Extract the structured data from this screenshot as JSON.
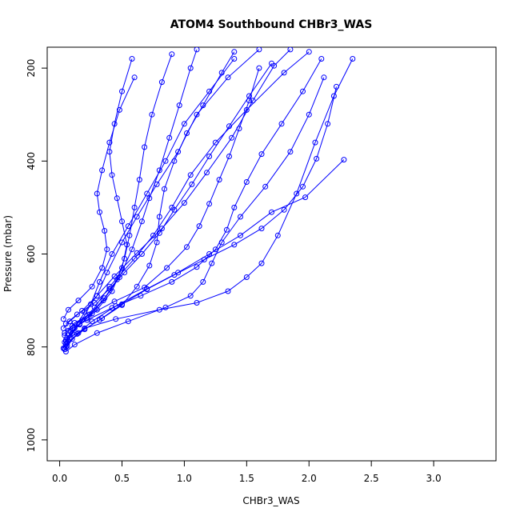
{
  "chart_data": {
    "type": "line",
    "title": "ATOM4 Southbound CHBr3_WAS",
    "xlabel": "CHBr3_WAS",
    "ylabel": "Pressure (mbar)",
    "xlim": [
      -0.1,
      3.5
    ],
    "ylim": [
      1045,
      155
    ],
    "y_reversed": true,
    "x_ticks": [
      0.0,
      0.5,
      1.0,
      1.5,
      2.0,
      2.5,
      3.0
    ],
    "x_tick_labels": [
      "0.0",
      "0.5",
      "1.0",
      "1.5",
      "2.0",
      "2.5",
      "3.0"
    ],
    "y_ticks": [
      200,
      400,
      600,
      800,
      1000
    ],
    "y_tick_labels": [
      "200",
      "400",
      "600",
      "800",
      "1000"
    ],
    "grid": false,
    "legend": "none",
    "marker": "open-circle",
    "series_color": "#0000ff",
    "series": [
      {
        "points": [
          [
            0.04,
            805
          ],
          [
            0.06,
            792
          ],
          [
            0.1,
            770
          ],
          [
            0.18,
            742
          ],
          [
            0.25,
            708
          ],
          [
            0.32,
            660
          ],
          [
            0.42,
            600
          ],
          [
            0.55,
            540
          ],
          [
            0.7,
            470
          ],
          [
            0.85,
            400
          ],
          [
            1.0,
            320
          ],
          [
            1.2,
            250
          ],
          [
            1.4,
            180
          ]
        ]
      },
      {
        "points": [
          [
            0.03,
            803
          ],
          [
            0.05,
            788
          ],
          [
            0.12,
            760
          ],
          [
            0.2,
            725
          ],
          [
            0.3,
            690
          ],
          [
            0.38,
            640
          ],
          [
            0.5,
            575
          ],
          [
            0.62,
            520
          ],
          [
            0.78,
            450
          ],
          [
            0.95,
            380
          ],
          [
            1.1,
            300
          ],
          [
            1.35,
            220
          ],
          [
            1.6,
            160
          ]
        ]
      },
      {
        "points": [
          [
            0.05,
            800
          ],
          [
            0.08,
            780
          ],
          [
            0.16,
            750
          ],
          [
            0.28,
            715
          ],
          [
            0.4,
            670
          ],
          [
            0.6,
            610
          ],
          [
            0.75,
            560
          ],
          [
            0.9,
            500
          ],
          [
            1.05,
            430
          ],
          [
            1.25,
            360
          ],
          [
            1.5,
            290
          ],
          [
            1.8,
            210
          ],
          [
            2.0,
            165
          ]
        ]
      },
      {
        "points": [
          [
            0.04,
            790
          ],
          [
            0.09,
            768
          ],
          [
            0.22,
            738
          ],
          [
            0.35,
            700
          ],
          [
            0.48,
            650
          ],
          [
            0.58,
            590
          ],
          [
            0.66,
            530
          ],
          [
            0.72,
            480
          ],
          [
            0.8,
            420
          ],
          [
            0.88,
            350
          ],
          [
            0.96,
            280
          ],
          [
            1.05,
            200
          ],
          [
            1.1,
            160
          ]
        ]
      },
      {
        "points": [
          [
            0.06,
            798
          ],
          [
            0.14,
            772
          ],
          [
            0.26,
            745
          ],
          [
            0.45,
            712
          ],
          [
            0.7,
            675
          ],
          [
            0.95,
            640
          ],
          [
            1.2,
            600
          ],
          [
            1.45,
            560
          ],
          [
            1.7,
            510
          ],
          [
            1.97,
            478
          ],
          [
            2.28,
            397
          ]
        ]
      },
      {
        "points": [
          [
            0.05,
            785
          ],
          [
            0.2,
            760
          ],
          [
            0.45,
            740
          ],
          [
            0.8,
            720
          ],
          [
            1.1,
            705
          ],
          [
            1.35,
            680
          ],
          [
            1.5,
            650
          ],
          [
            1.62,
            620
          ],
          [
            1.75,
            560
          ],
          [
            1.9,
            470
          ],
          [
            2.05,
            360
          ],
          [
            2.2,
            260
          ],
          [
            2.35,
            180
          ]
        ]
      },
      {
        "points": [
          [
            0.04,
            775
          ],
          [
            0.1,
            755
          ],
          [
            0.24,
            730
          ],
          [
            0.36,
            695
          ],
          [
            0.46,
            655
          ],
          [
            0.52,
            610
          ],
          [
            0.56,
            560
          ],
          [
            0.6,
            500
          ],
          [
            0.64,
            440
          ],
          [
            0.68,
            370
          ],
          [
            0.74,
            300
          ],
          [
            0.82,
            230
          ],
          [
            0.9,
            170
          ]
        ]
      },
      {
        "points": [
          [
            0.03,
            760
          ],
          [
            0.08,
            745
          ],
          [
            0.18,
            722
          ],
          [
            0.3,
            690
          ],
          [
            0.44,
            648
          ],
          [
            0.62,
            598
          ],
          [
            0.82,
            545
          ],
          [
            1.0,
            490
          ],
          [
            1.18,
            425
          ],
          [
            1.38,
            350
          ],
          [
            1.55,
            270
          ],
          [
            1.72,
            195
          ],
          [
            1.85,
            160
          ]
        ]
      },
      {
        "points": [
          [
            0.05,
            810
          ],
          [
            0.12,
            795
          ],
          [
            0.3,
            770
          ],
          [
            0.55,
            745
          ],
          [
            0.85,
            715
          ],
          [
            1.05,
            690
          ],
          [
            1.15,
            660
          ],
          [
            1.22,
            620
          ],
          [
            1.3,
            575
          ],
          [
            1.45,
            520
          ],
          [
            1.65,
            455
          ],
          [
            1.85,
            380
          ],
          [
            2.0,
            300
          ],
          [
            2.12,
            220
          ]
        ]
      },
      {
        "points": [
          [
            0.06,
            780
          ],
          [
            0.16,
            752
          ],
          [
            0.3,
            720
          ],
          [
            0.42,
            680
          ],
          [
            0.5,
            630
          ],
          [
            0.54,
            580
          ],
          [
            0.5,
            530
          ],
          [
            0.46,
            480
          ],
          [
            0.42,
            430
          ],
          [
            0.4,
            380
          ],
          [
            0.44,
            320
          ],
          [
            0.5,
            250
          ],
          [
            0.58,
            180
          ]
        ]
      },
      {
        "points": [
          [
            0.04,
            770
          ],
          [
            0.12,
            748
          ],
          [
            0.26,
            728
          ],
          [
            0.44,
            702
          ],
          [
            0.68,
            672
          ],
          [
            0.86,
            630
          ],
          [
            1.02,
            585
          ],
          [
            1.12,
            540
          ],
          [
            1.2,
            492
          ],
          [
            1.28,
            440
          ],
          [
            1.36,
            390
          ],
          [
            1.44,
            330
          ],
          [
            1.52,
            270
          ],
          [
            1.6,
            200
          ]
        ]
      },
      {
        "points": [
          [
            0.05,
            795
          ],
          [
            0.15,
            770
          ],
          [
            0.32,
            742
          ],
          [
            0.5,
            710
          ],
          [
            0.62,
            670
          ],
          [
            0.72,
            625
          ],
          [
            0.78,
            575
          ],
          [
            0.8,
            520
          ],
          [
            0.84,
            460
          ],
          [
            0.92,
            400
          ],
          [
            1.02,
            340
          ],
          [
            1.15,
            280
          ],
          [
            1.3,
            210
          ],
          [
            1.4,
            165
          ]
        ]
      },
      {
        "points": [
          [
            0.03,
            740
          ],
          [
            0.07,
            720
          ],
          [
            0.15,
            700
          ],
          [
            0.26,
            670
          ],
          [
            0.34,
            630
          ],
          [
            0.38,
            590
          ],
          [
            0.36,
            550
          ],
          [
            0.32,
            510
          ],
          [
            0.3,
            470
          ],
          [
            0.34,
            420
          ],
          [
            0.4,
            360
          ],
          [
            0.48,
            290
          ],
          [
            0.6,
            220
          ]
        ]
      },
      {
        "points": [
          [
            0.07,
            765
          ],
          [
            0.22,
            742
          ],
          [
            0.42,
            716
          ],
          [
            0.65,
            690
          ],
          [
            0.9,
            660
          ],
          [
            1.1,
            628
          ],
          [
            1.25,
            590
          ],
          [
            1.34,
            548
          ],
          [
            1.4,
            500
          ],
          [
            1.5,
            445
          ],
          [
            1.62,
            385
          ],
          [
            1.78,
            320
          ],
          [
            1.95,
            250
          ],
          [
            2.1,
            180
          ]
        ]
      },
      {
        "points": [
          [
            0.05,
            750
          ],
          [
            0.14,
            730
          ],
          [
            0.28,
            705
          ],
          [
            0.4,
            675
          ],
          [
            0.52,
            640
          ],
          [
            0.66,
            600
          ],
          [
            0.8,
            555
          ],
          [
            0.92,
            505
          ],
          [
            1.06,
            450
          ],
          [
            1.2,
            390
          ],
          [
            1.36,
            325
          ],
          [
            1.52,
            260
          ],
          [
            1.7,
            190
          ]
        ]
      },
      {
        "points": [
          [
            0.04,
            802
          ],
          [
            0.1,
            783
          ],
          [
            0.2,
            762
          ],
          [
            0.34,
            738
          ],
          [
            0.5,
            708
          ],
          [
            0.7,
            676
          ],
          [
            0.92,
            645
          ],
          [
            1.16,
            612
          ],
          [
            1.4,
            580
          ],
          [
            1.62,
            545
          ],
          [
            1.8,
            505
          ],
          [
            1.95,
            455
          ],
          [
            2.06,
            395
          ],
          [
            2.15,
            320
          ],
          [
            2.22,
            240
          ]
        ]
      }
    ]
  }
}
